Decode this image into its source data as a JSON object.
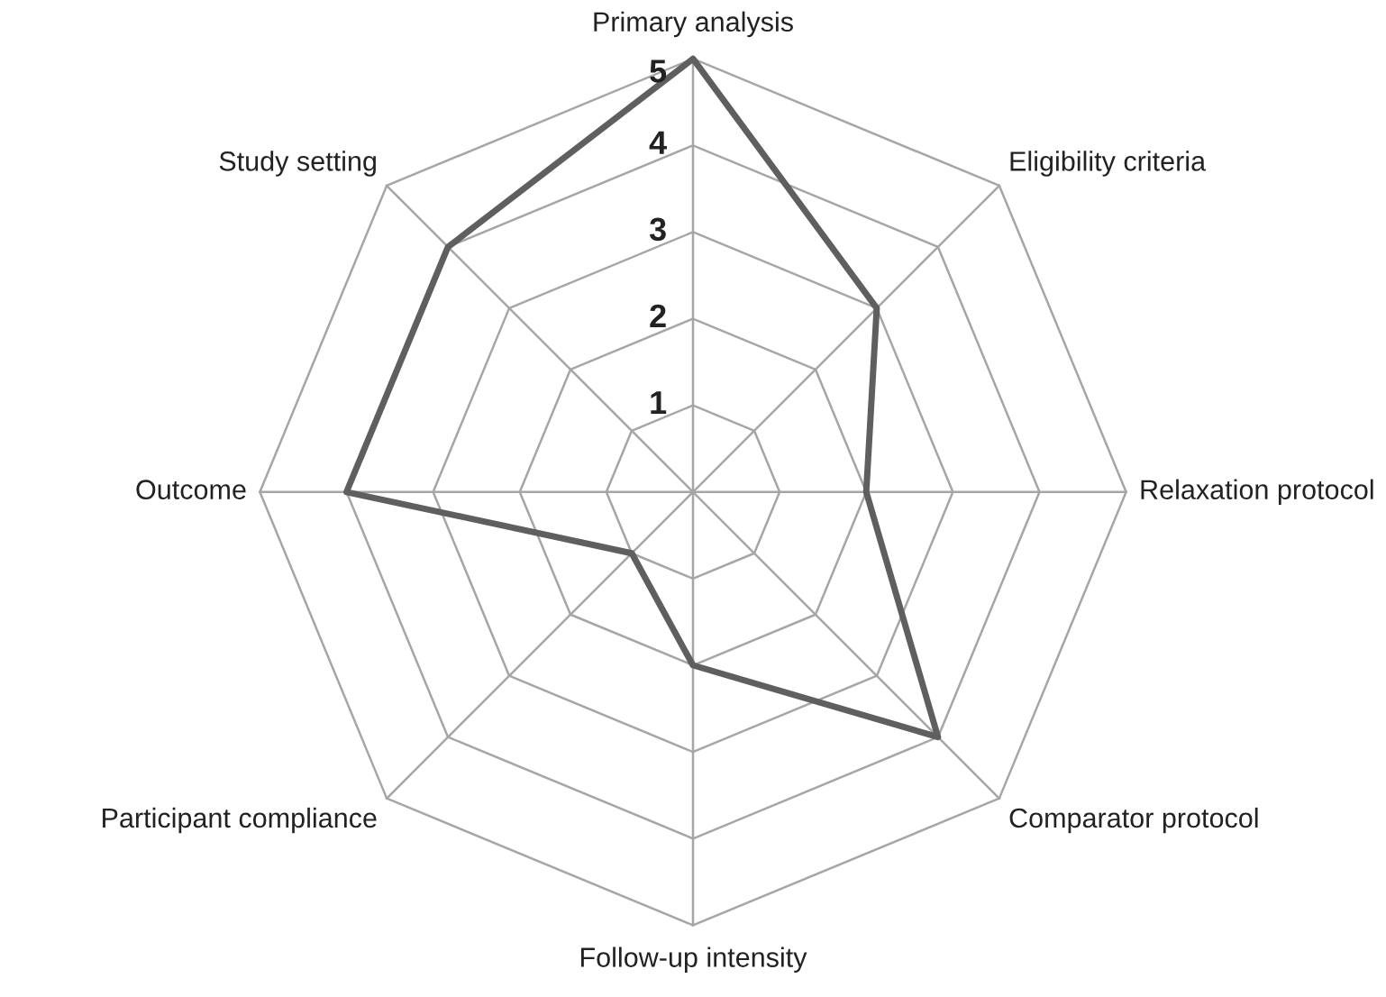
{
  "chart_data": {
    "type": "radar",
    "categories": [
      "Primary analysis",
      "Eligibility criteria",
      "Relaxation protocol",
      "Comparator protocol",
      "Follow-up intensity",
      "Participant compliance",
      "Outcome",
      "Study setting"
    ],
    "series": [
      {
        "color": "#5f5f5f",
        "values": [
          5,
          3,
          2,
          4,
          2,
          1,
          4,
          4
        ]
      }
    ],
    "ylim": [
      0,
      5
    ],
    "yticks": [
      1,
      2,
      3,
      4,
      5
    ],
    "grid": true,
    "marker": "none",
    "line_style": "solid"
  }
}
